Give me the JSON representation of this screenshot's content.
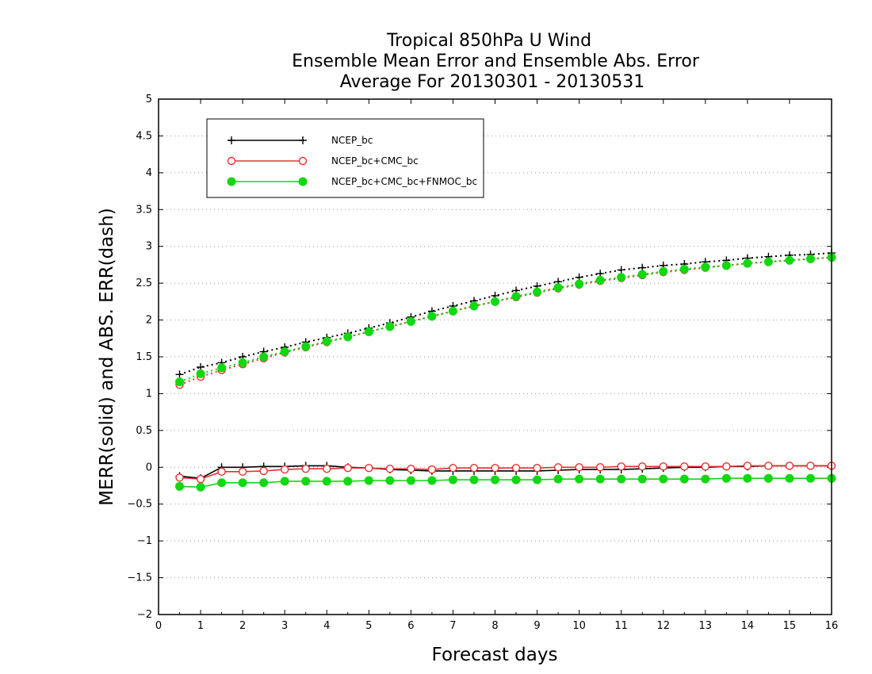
{
  "chart_data": {
    "type": "line",
    "title": [
      "Tropical 850hPa U Wind",
      "Ensemble Mean Error and Ensemble Abs. Error",
      "Average For 20130301 - 20130531"
    ],
    "xlabel": "Forecast days",
    "ylabel": "MERR(solid) and ABS. ERR(dash)",
    "xlim": [
      0,
      16
    ],
    "ylim": [
      -2,
      5
    ],
    "xticks": [
      0,
      1,
      2,
      3,
      4,
      5,
      6,
      7,
      8,
      9,
      10,
      11,
      12,
      13,
      14,
      15,
      16
    ],
    "yticks": [
      -2,
      -1.5,
      -1,
      -0.5,
      0,
      0.5,
      1,
      1.5,
      2,
      2.5,
      3,
      3.5,
      4,
      4.5,
      5
    ],
    "grid": "horizontal-dotted",
    "legend_position": "top-left",
    "x": [
      0.5,
      1,
      1.5,
      2,
      2.5,
      3,
      3.5,
      4,
      4.5,
      5,
      5.5,
      6,
      6.5,
      7,
      7.5,
      8,
      8.5,
      9,
      9.5,
      10,
      10.5,
      11,
      11.5,
      12,
      12.5,
      13,
      13.5,
      14,
      14.5,
      15,
      15.5,
      16
    ],
    "series": [
      {
        "name": "NCEP_bc",
        "color": "#000000",
        "marker": "plus",
        "merr": [
          -0.12,
          -0.15,
          0.0,
          0.0,
          0.01,
          0.01,
          0.02,
          0.02,
          0.0,
          -0.01,
          -0.03,
          -0.04,
          -0.05,
          -0.05,
          -0.05,
          -0.05,
          -0.05,
          -0.05,
          -0.04,
          -0.03,
          -0.03,
          -0.03,
          -0.02,
          -0.01,
          0.0,
          0.0,
          0.01,
          0.01,
          0.02,
          0.02,
          0.02,
          0.02
        ],
        "abserr": [
          1.26,
          1.36,
          1.42,
          1.5,
          1.57,
          1.63,
          1.7,
          1.76,
          1.82,
          1.89,
          1.96,
          2.04,
          2.12,
          2.19,
          2.26,
          2.33,
          2.4,
          2.46,
          2.52,
          2.58,
          2.63,
          2.68,
          2.71,
          2.74,
          2.76,
          2.79,
          2.81,
          2.84,
          2.86,
          2.88,
          2.89,
          2.91
        ]
      },
      {
        "name": "NCEP_bc+CMC_bc",
        "color": "#e83030",
        "marker": "circle-open",
        "merr": [
          -0.14,
          -0.16,
          -0.06,
          -0.06,
          -0.05,
          -0.03,
          -0.02,
          -0.02,
          -0.01,
          -0.01,
          -0.02,
          -0.02,
          -0.03,
          -0.01,
          -0.01,
          -0.01,
          -0.01,
          -0.01,
          0.0,
          0.0,
          0.0,
          0.01,
          0.01,
          0.01,
          0.01,
          0.01,
          0.01,
          0.02,
          0.02,
          0.02,
          0.02,
          0.02
        ],
        "abserr": [
          1.12,
          1.23,
          1.32,
          1.4,
          1.48,
          1.56,
          1.63,
          1.7,
          1.77,
          1.84,
          1.91,
          1.98,
          2.05,
          2.12,
          2.19,
          2.25,
          2.31,
          2.37,
          2.43,
          2.48,
          2.53,
          2.57,
          2.61,
          2.65,
          2.68,
          2.71,
          2.74,
          2.77,
          2.79,
          2.81,
          2.83,
          2.85
        ]
      },
      {
        "name": "NCEP_bc+CMC_bc+FNMOC_bc",
        "color": "#11d811",
        "marker": "circle-filled",
        "merr": [
          -0.26,
          -0.27,
          -0.21,
          -0.21,
          -0.21,
          -0.19,
          -0.19,
          -0.19,
          -0.19,
          -0.18,
          -0.18,
          -0.18,
          -0.18,
          -0.17,
          -0.17,
          -0.17,
          -0.17,
          -0.17,
          -0.16,
          -0.16,
          -0.16,
          -0.16,
          -0.16,
          -0.16,
          -0.16,
          -0.16,
          -0.15,
          -0.15,
          -0.15,
          -0.15,
          -0.15,
          -0.15
        ],
        "abserr": [
          1.16,
          1.27,
          1.35,
          1.42,
          1.5,
          1.57,
          1.64,
          1.71,
          1.77,
          1.84,
          1.91,
          1.98,
          2.05,
          2.12,
          2.19,
          2.25,
          2.32,
          2.38,
          2.44,
          2.49,
          2.54,
          2.58,
          2.62,
          2.66,
          2.69,
          2.72,
          2.74,
          2.77,
          2.79,
          2.81,
          2.83,
          2.85
        ]
      }
    ]
  }
}
